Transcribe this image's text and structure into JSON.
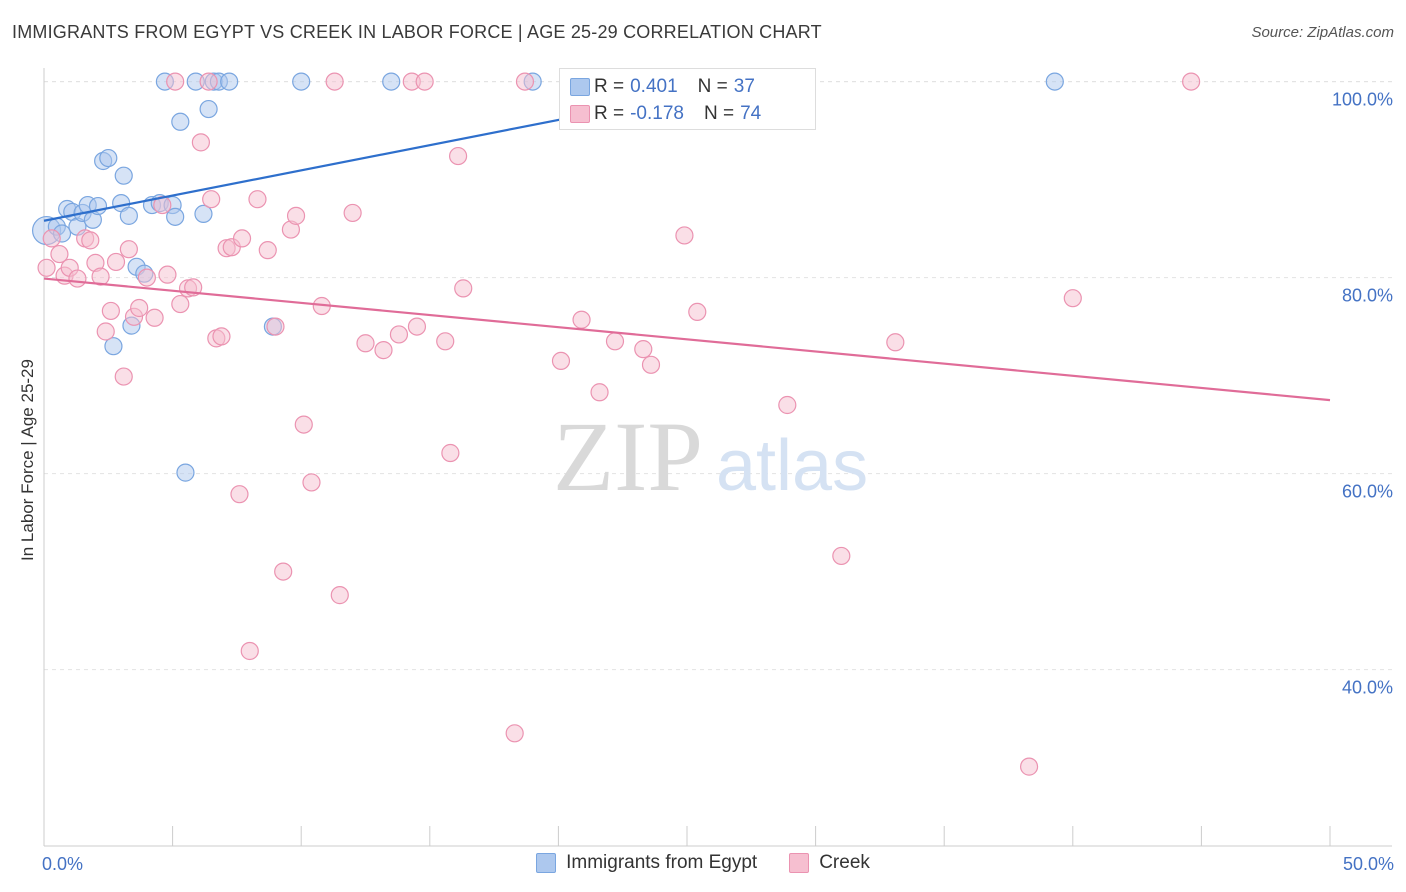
{
  "header": {
    "title": "IMMIGRANTS FROM EGYPT VS CREEK IN LABOR FORCE | AGE 25-29 CORRELATION CHART",
    "source": "Source: ZipAtlas.com"
  },
  "watermark": {
    "zip": "ZIP",
    "atlas": "atlas"
  },
  "colors": {
    "blue_fill": "#adc8ee",
    "blue_stroke": "#7aa6e0",
    "blue_line": "#2e6fcc",
    "pink_fill": "#f6bfd0",
    "pink_stroke": "#eb93b1",
    "pink_line": "#e06c98",
    "accent_text": "#4472c4",
    "grid": "#e2e2e2"
  },
  "stats": [
    {
      "r_label": "R =",
      "r_value": "0.401",
      "n_label": "N =",
      "n_value": "37"
    },
    {
      "r_label": "R =",
      "r_value": "-0.178",
      "n_label": "N =",
      "n_value": "74"
    }
  ],
  "legend": {
    "items": [
      "Immigrants from Egypt",
      "Creek"
    ]
  },
  "chart_data": {
    "type": "scatter",
    "title": "IMMIGRANTS FROM EGYPT VS CREEK IN LABOR FORCE | AGE 25-29 CORRELATION CHART",
    "xlabel": "",
    "ylabel": "In Labor Force | Age 25-29",
    "xlim": [
      0,
      50
    ],
    "ylim": [
      22,
      102
    ],
    "x_tick_labels": [
      "0.0%",
      "50.0%"
    ],
    "y_ticks": [
      40,
      60,
      80,
      100
    ],
    "y_tick_labels": [
      "40.0%",
      "60.0%",
      "80.0%",
      "100.0%"
    ],
    "grid": true,
    "legend_position": "bottom-center",
    "series": [
      {
        "name": "Immigrants from Egypt",
        "r": 0.401,
        "n": 37,
        "trend": {
          "x": [
            0,
            27.6
          ],
          "y": [
            85.8,
            100
          ]
        },
        "points": [
          {
            "x": 0.1,
            "y": 84.8,
            "size": "large"
          },
          {
            "x": 0.5,
            "y": 85.2
          },
          {
            "x": 0.7,
            "y": 84.5
          },
          {
            "x": 0.9,
            "y": 87.0
          },
          {
            "x": 1.1,
            "y": 86.7
          },
          {
            "x": 1.3,
            "y": 85.2
          },
          {
            "x": 1.5,
            "y": 86.6
          },
          {
            "x": 1.7,
            "y": 87.4
          },
          {
            "x": 1.9,
            "y": 85.9
          },
          {
            "x": 2.1,
            "y": 87.3
          },
          {
            "x": 2.3,
            "y": 91.9
          },
          {
            "x": 2.5,
            "y": 92.2
          },
          {
            "x": 2.7,
            "y": 73.0
          },
          {
            "x": 3.0,
            "y": 87.6
          },
          {
            "x": 3.1,
            "y": 90.4
          },
          {
            "x": 3.3,
            "y": 86.3
          },
          {
            "x": 3.4,
            "y": 75.1
          },
          {
            "x": 3.6,
            "y": 81.1
          },
          {
            "x": 3.9,
            "y": 80.4
          },
          {
            "x": 4.2,
            "y": 87.4
          },
          {
            "x": 4.5,
            "y": 87.6
          },
          {
            "x": 4.7,
            "y": 100.0
          },
          {
            "x": 5.0,
            "y": 87.4
          },
          {
            "x": 5.1,
            "y": 86.2
          },
          {
            "x": 5.3,
            "y": 95.9
          },
          {
            "x": 5.5,
            "y": 60.1
          },
          {
            "x": 5.9,
            "y": 100.0
          },
          {
            "x": 6.2,
            "y": 86.5
          },
          {
            "x": 6.4,
            "y": 97.2
          },
          {
            "x": 6.6,
            "y": 100.0
          },
          {
            "x": 6.8,
            "y": 100.0
          },
          {
            "x": 7.2,
            "y": 100.0
          },
          {
            "x": 8.9,
            "y": 75.0
          },
          {
            "x": 10.0,
            "y": 100.0
          },
          {
            "x": 13.5,
            "y": 100.0
          },
          {
            "x": 19.0,
            "y": 100.0
          },
          {
            "x": 39.3,
            "y": 100.0
          }
        ]
      },
      {
        "name": "Creek",
        "r": -0.178,
        "n": 74,
        "trend": {
          "x": [
            0,
            50
          ],
          "y": [
            79.9,
            67.5
          ]
        },
        "points": [
          {
            "x": 0.1,
            "y": 81.0
          },
          {
            "x": 0.6,
            "y": 82.4
          },
          {
            "x": 0.8,
            "y": 80.2
          },
          {
            "x": 1.0,
            "y": 81.0
          },
          {
            "x": 1.3,
            "y": 79.9
          },
          {
            "x": 1.6,
            "y": 84.0
          },
          {
            "x": 1.8,
            "y": 83.8
          },
          {
            "x": 2.0,
            "y": 81.5
          },
          {
            "x": 2.2,
            "y": 80.1
          },
          {
            "x": 2.4,
            "y": 74.5
          },
          {
            "x": 2.6,
            "y": 76.6
          },
          {
            "x": 2.8,
            "y": 81.6
          },
          {
            "x": 3.1,
            "y": 69.9
          },
          {
            "x": 3.3,
            "y": 82.9
          },
          {
            "x": 3.5,
            "y": 76.0
          },
          {
            "x": 3.7,
            "y": 76.9
          },
          {
            "x": 4.0,
            "y": 80.0
          },
          {
            "x": 4.3,
            "y": 75.9
          },
          {
            "x": 4.6,
            "y": 87.4
          },
          {
            "x": 4.8,
            "y": 80.3
          },
          {
            "x": 5.1,
            "y": 100.0
          },
          {
            "x": 5.3,
            "y": 77.3
          },
          {
            "x": 5.6,
            "y": 78.9
          },
          {
            "x": 5.8,
            "y": 79.0
          },
          {
            "x": 6.1,
            "y": 93.8
          },
          {
            "x": 6.4,
            "y": 100.0
          },
          {
            "x": 6.5,
            "y": 88.0
          },
          {
            "x": 6.7,
            "y": 73.8
          },
          {
            "x": 6.9,
            "y": 74.0
          },
          {
            "x": 7.1,
            "y": 83.0
          },
          {
            "x": 7.3,
            "y": 83.1
          },
          {
            "x": 7.6,
            "y": 57.9
          },
          {
            "x": 7.7,
            "y": 84.0
          },
          {
            "x": 8.0,
            "y": 41.9
          },
          {
            "x": 8.3,
            "y": 88.0
          },
          {
            "x": 8.7,
            "y": 82.8
          },
          {
            "x": 9.0,
            "y": 75.0
          },
          {
            "x": 9.3,
            "y": 50.0
          },
          {
            "x": 9.6,
            "y": 84.9
          },
          {
            "x": 9.8,
            "y": 86.3
          },
          {
            "x": 10.1,
            "y": 65.0
          },
          {
            "x": 10.4,
            "y": 59.1
          },
          {
            "x": 10.8,
            "y": 77.1
          },
          {
            "x": 11.3,
            "y": 100.0
          },
          {
            "x": 11.5,
            "y": 47.6
          },
          {
            "x": 12.0,
            "y": 86.6
          },
          {
            "x": 12.5,
            "y": 73.3
          },
          {
            "x": 13.2,
            "y": 72.6
          },
          {
            "x": 13.8,
            "y": 74.2
          },
          {
            "x": 14.3,
            "y": 100.0
          },
          {
            "x": 14.5,
            "y": 75.0
          },
          {
            "x": 14.8,
            "y": 100.0
          },
          {
            "x": 15.6,
            "y": 73.5
          },
          {
            "x": 15.8,
            "y": 62.1
          },
          {
            "x": 16.1,
            "y": 92.4
          },
          {
            "x": 16.3,
            "y": 78.9
          },
          {
            "x": 18.3,
            "y": 33.5
          },
          {
            "x": 18.7,
            "y": 100.0
          },
          {
            "x": 20.1,
            "y": 71.5
          },
          {
            "x": 20.9,
            "y": 75.7
          },
          {
            "x": 21.6,
            "y": 68.3
          },
          {
            "x": 22.2,
            "y": 73.5
          },
          {
            "x": 23.3,
            "y": 72.7
          },
          {
            "x": 23.6,
            "y": 71.1
          },
          {
            "x": 24.0,
            "y": 100.0
          },
          {
            "x": 24.9,
            "y": 84.3
          },
          {
            "x": 25.4,
            "y": 76.5
          },
          {
            "x": 28.9,
            "y": 67.0
          },
          {
            "x": 31.0,
            "y": 51.6
          },
          {
            "x": 33.1,
            "y": 73.4
          },
          {
            "x": 38.3,
            "y": 30.1
          },
          {
            "x": 40.0,
            "y": 77.9
          },
          {
            "x": 44.6,
            "y": 100.0
          },
          {
            "x": 0.3,
            "y": 84.0
          }
        ]
      }
    ]
  }
}
